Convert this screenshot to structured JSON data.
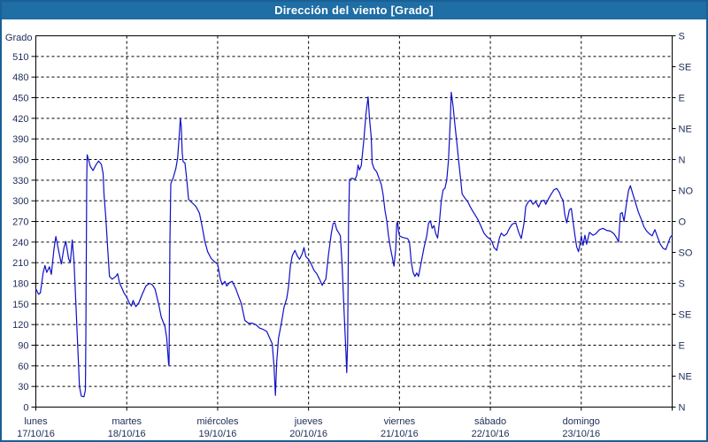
{
  "window": {
    "title": "Dirección del viento [Grado]"
  },
  "colors": {
    "title_bar": "#1f6ea5",
    "frame": "#1a5f96",
    "line": "#0f0fc8",
    "grid": "#000000",
    "axis_text": "#20305a",
    "background": "#ffffff"
  },
  "chart_data": {
    "type": "line",
    "title": "Dirección del viento [Grado]",
    "ylabel_left": "Grado",
    "ylim": [
      0,
      540
    ],
    "y_left_tick_step": 30,
    "y_left_ticks": [
      0,
      30,
      60,
      90,
      120,
      150,
      180,
      210,
      240,
      270,
      300,
      330,
      360,
      390,
      420,
      450,
      480,
      510
    ],
    "y_right_ticks_bottom_to_top": [
      "N",
      "NE",
      "E",
      "SE",
      "S",
      "SO",
      "O",
      "NO",
      "N",
      "NE",
      "E",
      "SE",
      "S"
    ],
    "y_right_tick_step": 45,
    "xlim_days": [
      0,
      7
    ],
    "grid": "dashed",
    "legend_position": "none",
    "x_axis_days": [
      {
        "name": "lunes",
        "date": "17/10/16"
      },
      {
        "name": "martes",
        "date": "18/10/16"
      },
      {
        "name": "miércoles",
        "date": "19/10/16"
      },
      {
        "name": "jueves",
        "date": "20/10/16"
      },
      {
        "name": "viernes",
        "date": "21/10/16"
      },
      {
        "name": "sábado",
        "date": "22/10/16"
      },
      {
        "name": "domingo",
        "date": "23/10/16"
      }
    ],
    "series": [
      {
        "name": "Dirección del viento",
        "color": "#0f0fc8",
        "points": [
          [
            0.0,
            172
          ],
          [
            0.03,
            164
          ],
          [
            0.05,
            166
          ],
          [
            0.08,
            195
          ],
          [
            0.1,
            206
          ],
          [
            0.12,
            196
          ],
          [
            0.15,
            204
          ],
          [
            0.17,
            193
          ],
          [
            0.2,
            230
          ],
          [
            0.22,
            248
          ],
          [
            0.25,
            228
          ],
          [
            0.28,
            208
          ],
          [
            0.31,
            232
          ],
          [
            0.33,
            241
          ],
          [
            0.36,
            216
          ],
          [
            0.38,
            210
          ],
          [
            0.4,
            243
          ],
          [
            0.42,
            212
          ],
          [
            0.44,
            152
          ],
          [
            0.46,
            92
          ],
          [
            0.48,
            30
          ],
          [
            0.5,
            16
          ],
          [
            0.53,
            15
          ],
          [
            0.545,
            25
          ],
          [
            0.55,
            100
          ],
          [
            0.56,
            330
          ],
          [
            0.565,
            367
          ],
          [
            0.6,
            350
          ],
          [
            0.63,
            344
          ],
          [
            0.66,
            352
          ],
          [
            0.69,
            358
          ],
          [
            0.72,
            353
          ],
          [
            0.74,
            340
          ],
          [
            0.75,
            310
          ],
          [
            0.77,
            275
          ],
          [
            0.79,
            232
          ],
          [
            0.81,
            190
          ],
          [
            0.84,
            186
          ],
          [
            0.88,
            190
          ],
          [
            0.9,
            194
          ],
          [
            0.92,
            181
          ],
          [
            0.95,
            172
          ],
          [
            0.97,
            166
          ],
          [
            1.0,
            160
          ],
          [
            1.03,
            151
          ],
          [
            1.05,
            147
          ],
          [
            1.07,
            155
          ],
          [
            1.1,
            146
          ],
          [
            1.13,
            151
          ],
          [
            1.17,
            164
          ],
          [
            1.21,
            176
          ],
          [
            1.25,
            180
          ],
          [
            1.28,
            178
          ],
          [
            1.31,
            172
          ],
          [
            1.35,
            150
          ],
          [
            1.38,
            131
          ],
          [
            1.42,
            117
          ],
          [
            1.44,
            100
          ],
          [
            1.46,
            63
          ],
          [
            1.465,
            60
          ],
          [
            1.475,
            240
          ],
          [
            1.485,
            325
          ],
          [
            1.51,
            333
          ],
          [
            1.54,
            347
          ],
          [
            1.56,
            362
          ],
          [
            1.58,
            400
          ],
          [
            1.59,
            420
          ],
          [
            1.6,
            408
          ],
          [
            1.61,
            370
          ],
          [
            1.62,
            357
          ],
          [
            1.64,
            355
          ],
          [
            1.66,
            331
          ],
          [
            1.68,
            302
          ],
          [
            1.72,
            297
          ],
          [
            1.76,
            292
          ],
          [
            1.8,
            282
          ],
          [
            1.83,
            262
          ],
          [
            1.86,
            241
          ],
          [
            1.89,
            226
          ],
          [
            1.93,
            216
          ],
          [
            1.97,
            211
          ],
          [
            2.0,
            208
          ],
          [
            2.03,
            186
          ],
          [
            2.05,
            178
          ],
          [
            2.08,
            183
          ],
          [
            2.1,
            176
          ],
          [
            2.13,
            181
          ],
          [
            2.16,
            183
          ],
          [
            2.2,
            172
          ],
          [
            2.23,
            161
          ],
          [
            2.26,
            151
          ],
          [
            2.3,
            126
          ],
          [
            2.34,
            122
          ],
          [
            2.38,
            122
          ],
          [
            2.42,
            120
          ],
          [
            2.46,
            115
          ],
          [
            2.5,
            113
          ],
          [
            2.54,
            110
          ],
          [
            2.57,
            101
          ],
          [
            2.6,
            92
          ],
          [
            2.62,
            60
          ],
          [
            2.635,
            17
          ],
          [
            2.65,
            66
          ],
          [
            2.67,
            100
          ],
          [
            2.7,
            121
          ],
          [
            2.73,
            145
          ],
          [
            2.76,
            158
          ],
          [
            2.78,
            175
          ],
          [
            2.8,
            205
          ],
          [
            2.82,
            220
          ],
          [
            2.85,
            228
          ],
          [
            2.88,
            219
          ],
          [
            2.9,
            215
          ],
          [
            2.93,
            223
          ],
          [
            2.95,
            232
          ],
          [
            2.97,
            219
          ],
          [
            3.0,
            215
          ],
          [
            3.03,
            208
          ],
          [
            3.06,
            199
          ],
          [
            3.09,
            194
          ],
          [
            3.12,
            186
          ],
          [
            3.15,
            177
          ],
          [
            3.17,
            182
          ],
          [
            3.19,
            186
          ],
          [
            3.22,
            222
          ],
          [
            3.25,
            252
          ],
          [
            3.27,
            267
          ],
          [
            3.29,
            268
          ],
          [
            3.31,
            258
          ],
          [
            3.33,
            254
          ],
          [
            3.35,
            249
          ],
          [
            3.37,
            206
          ],
          [
            3.39,
            142
          ],
          [
            3.41,
            82
          ],
          [
            3.42,
            50
          ],
          [
            3.43,
            95
          ],
          [
            3.44,
            260
          ],
          [
            3.45,
            331
          ],
          [
            3.48,
            333
          ],
          [
            3.51,
            331
          ],
          [
            3.53,
            337
          ],
          [
            3.545,
            352
          ],
          [
            3.56,
            345
          ],
          [
            3.58,
            351
          ],
          [
            3.61,
            391
          ],
          [
            3.63,
            425
          ],
          [
            3.655,
            451
          ],
          [
            3.67,
            420
          ],
          [
            3.69,
            392
          ],
          [
            3.7,
            355
          ],
          [
            3.72,
            347
          ],
          [
            3.75,
            342
          ],
          [
            3.78,
            331
          ],
          [
            3.8,
            324
          ],
          [
            3.82,
            309
          ],
          [
            3.84,
            287
          ],
          [
            3.86,
            271
          ],
          [
            3.88,
            249
          ],
          [
            3.9,
            232
          ],
          [
            3.92,
            219
          ],
          [
            3.94,
            205
          ],
          [
            3.96,
            231
          ],
          [
            3.97,
            267
          ],
          [
            3.98,
            269
          ],
          [
            3.99,
            256
          ],
          [
            4.0,
            249
          ],
          [
            4.03,
            247
          ],
          [
            4.06,
            246
          ],
          [
            4.09,
            245
          ],
          [
            4.11,
            240
          ],
          [
            4.13,
            211
          ],
          [
            4.15,
            196
          ],
          [
            4.17,
            190
          ],
          [
            4.19,
            195
          ],
          [
            4.21,
            190
          ],
          [
            4.24,
            211
          ],
          [
            4.27,
            232
          ],
          [
            4.3,
            249
          ],
          [
            4.32,
            267
          ],
          [
            4.34,
            271
          ],
          [
            4.36,
            260
          ],
          [
            4.38,
            264
          ],
          [
            4.4,
            252
          ],
          [
            4.42,
            246
          ],
          [
            4.44,
            270
          ],
          [
            4.46,
            300
          ],
          [
            4.48,
            316
          ],
          [
            4.5,
            318
          ],
          [
            4.52,
            330
          ],
          [
            4.54,
            360
          ],
          [
            4.56,
            420
          ],
          [
            4.57,
            458
          ],
          [
            4.59,
            437
          ],
          [
            4.61,
            411
          ],
          [
            4.63,
            386
          ],
          [
            4.65,
            360
          ],
          [
            4.67,
            335
          ],
          [
            4.69,
            310
          ],
          [
            4.72,
            304
          ],
          [
            4.75,
            299
          ],
          [
            4.78,
            291
          ],
          [
            4.81,
            284
          ],
          [
            4.84,
            278
          ],
          [
            4.87,
            271
          ],
          [
            4.9,
            262
          ],
          [
            4.93,
            253
          ],
          [
            4.96,
            248
          ],
          [
            5.0,
            244
          ],
          [
            5.02,
            240
          ],
          [
            5.04,
            232
          ],
          [
            5.07,
            228
          ],
          [
            5.1,
            246
          ],
          [
            5.12,
            253
          ],
          [
            5.15,
            249
          ],
          [
            5.18,
            252
          ],
          [
            5.21,
            260
          ],
          [
            5.24,
            266
          ],
          [
            5.28,
            268
          ],
          [
            5.31,
            255
          ],
          [
            5.34,
            245
          ],
          [
            5.37,
            267
          ],
          [
            5.39,
            292
          ],
          [
            5.42,
            299
          ],
          [
            5.44,
            301
          ],
          [
            5.47,
            295
          ],
          [
            5.5,
            299
          ],
          [
            5.53,
            291
          ],
          [
            5.56,
            299
          ],
          [
            5.59,
            301
          ],
          [
            5.61,
            295
          ],
          [
            5.64,
            303
          ],
          [
            5.67,
            310
          ],
          [
            5.7,
            316
          ],
          [
            5.73,
            318
          ],
          [
            5.76,
            312
          ],
          [
            5.78,
            305
          ],
          [
            5.8,
            301
          ],
          [
            5.82,
            279
          ],
          [
            5.84,
            268
          ],
          [
            5.87,
            287
          ],
          [
            5.89,
            289
          ],
          [
            5.91,
            270
          ],
          [
            5.93,
            250
          ],
          [
            5.95,
            233
          ],
          [
            5.97,
            226
          ],
          [
            5.99,
            240
          ],
          [
            6.0,
            249
          ],
          [
            6.02,
            235
          ],
          [
            6.04,
            250
          ],
          [
            6.06,
            237
          ],
          [
            6.09,
            254
          ],
          [
            6.13,
            250
          ],
          [
            6.16,
            252
          ],
          [
            6.2,
            258
          ],
          [
            6.24,
            260
          ],
          [
            6.28,
            257
          ],
          [
            6.32,
            256
          ],
          [
            6.36,
            252
          ],
          [
            6.39,
            246
          ],
          [
            6.41,
            240
          ],
          [
            6.43,
            281
          ],
          [
            6.45,
            283
          ],
          [
            6.47,
            270
          ],
          [
            6.5,
            298
          ],
          [
            6.52,
            315
          ],
          [
            6.54,
            322
          ],
          [
            6.57,
            309
          ],
          [
            6.6,
            296
          ],
          [
            6.63,
            283
          ],
          [
            6.66,
            273
          ],
          [
            6.69,
            262
          ],
          [
            6.72,
            256
          ],
          [
            6.75,
            252
          ],
          [
            6.78,
            249
          ],
          [
            6.81,
            258
          ],
          [
            6.84,
            247
          ],
          [
            6.87,
            237
          ],
          [
            6.9,
            231
          ],
          [
            6.93,
            229
          ],
          [
            6.96,
            240
          ],
          [
            6.98,
            247
          ],
          [
            7.0,
            250
          ]
        ]
      }
    ]
  }
}
